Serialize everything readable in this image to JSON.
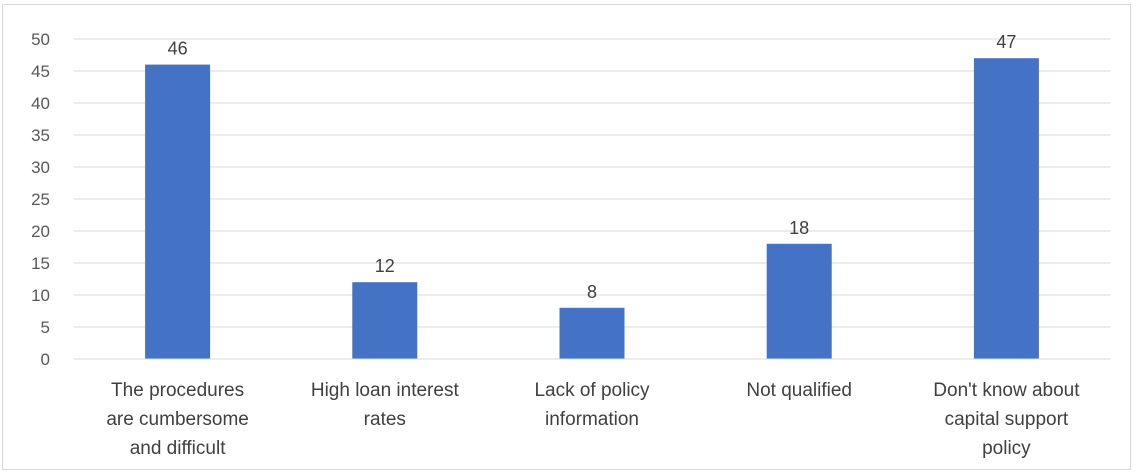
{
  "chart_data": {
    "type": "bar",
    "categories": [
      [
        "The procedures",
        "are cumbersome",
        "and difficult"
      ],
      [
        "High loan interest",
        "rates"
      ],
      [
        "Lack of policy",
        "information"
      ],
      [
        "Not qualified"
      ],
      [
        "Don't know about",
        "capital support",
        "policy"
      ]
    ],
    "values": [
      46,
      12,
      8,
      18,
      47
    ],
    "ylim": [
      0,
      50
    ],
    "yticks": [
      0,
      5,
      10,
      15,
      20,
      25,
      30,
      35,
      40,
      45,
      50
    ],
    "grid": true,
    "data_labels": true,
    "bar_color": "#4472c4",
    "grid_color": "#d9d9d9"
  }
}
